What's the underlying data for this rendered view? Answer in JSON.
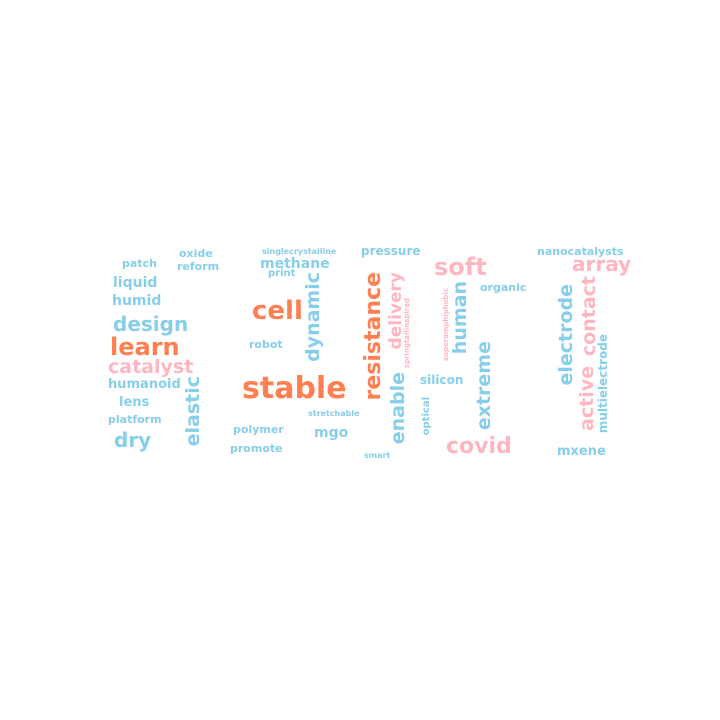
{
  "colors": {
    "blue": "#87ceeb",
    "coral": "#ff7f50",
    "pink": "#ffb6c1"
  },
  "words": [
    {
      "text": "oxide",
      "color": "blue"
    },
    {
      "text": "patch",
      "color": "blue"
    },
    {
      "text": "reform",
      "color": "blue"
    },
    {
      "text": "liquid",
      "color": "blue"
    },
    {
      "text": "humid",
      "color": "blue"
    },
    {
      "text": "design",
      "color": "blue"
    },
    {
      "text": "learn",
      "color": "coral"
    },
    {
      "text": "catalyst",
      "color": "pink"
    },
    {
      "text": "humanoid",
      "color": "blue"
    },
    {
      "text": "lens",
      "color": "blue"
    },
    {
      "text": "platform",
      "color": "blue"
    },
    {
      "text": "dry",
      "color": "blue"
    },
    {
      "text": "elastic",
      "color": "blue"
    },
    {
      "text": "singlecrystalline",
      "color": "blue"
    },
    {
      "text": "methane",
      "color": "blue"
    },
    {
      "text": "print",
      "color": "blue"
    },
    {
      "text": "cell",
      "color": "coral"
    },
    {
      "text": "dynamic",
      "color": "blue"
    },
    {
      "text": "robot",
      "color": "blue"
    },
    {
      "text": "stable",
      "color": "coral"
    },
    {
      "text": "stretchable",
      "color": "blue"
    },
    {
      "text": "polymer",
      "color": "blue"
    },
    {
      "text": "mgo",
      "color": "blue"
    },
    {
      "text": "promote",
      "color": "blue"
    },
    {
      "text": "pressure",
      "color": "blue"
    },
    {
      "text": "resistance",
      "color": "coral"
    },
    {
      "text": "delivery",
      "color": "pink"
    },
    {
      "text": "springtailinspired",
      "color": "pink"
    },
    {
      "text": "enable",
      "color": "blue"
    },
    {
      "text": "optical",
      "color": "blue"
    },
    {
      "text": "smart",
      "color": "blue"
    },
    {
      "text": "silicon",
      "color": "blue"
    },
    {
      "text": "soft",
      "color": "pink"
    },
    {
      "text": "superamphiphobic",
      "color": "pink"
    },
    {
      "text": "human",
      "color": "blue"
    },
    {
      "text": "organic",
      "color": "blue"
    },
    {
      "text": "extreme",
      "color": "blue"
    },
    {
      "text": "covid",
      "color": "pink"
    },
    {
      "text": "nanocatalysts",
      "color": "blue"
    },
    {
      "text": "array",
      "color": "pink"
    },
    {
      "text": "electrode",
      "color": "blue"
    },
    {
      "text": "contact",
      "color": "pink"
    },
    {
      "text": "active",
      "color": "pink"
    },
    {
      "text": "multielectrode",
      "color": "blue"
    },
    {
      "text": "mxene",
      "color": "blue"
    }
  ]
}
